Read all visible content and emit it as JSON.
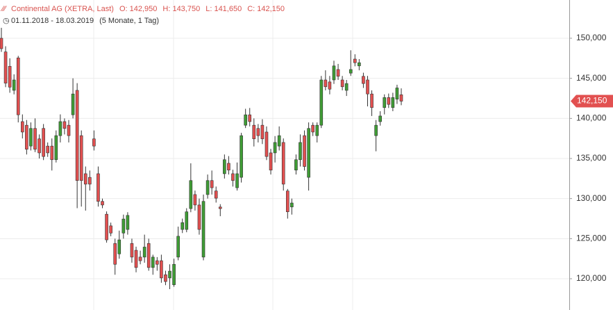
{
  "chart_data": {
    "type": "candlestick",
    "title": "Continental AG (XETRA, Last)",
    "ohlc_summary": [
      "O: 142,950",
      "H: 143,750",
      "L: 141,650",
      "C: 142,150"
    ],
    "period": "01.11.2018 - 18.03.2019",
    "period_note": "(5 Monate, 1 Tag)",
    "last_label": "142,150",
    "last_value": 142150,
    "up_color": "#3f9c35",
    "down_color": "#e25050",
    "grid": true,
    "ylim": [
      116100,
      154770
    ],
    "yticks": [
      {
        "value": 120000,
        "label": "120,000"
      },
      {
        "value": 125000,
        "label": "125,000"
      },
      {
        "value": 130000,
        "label": "130,000"
      },
      {
        "value": 135000,
        "label": "135,000"
      },
      {
        "value": 140000,
        "label": "140,000"
      },
      {
        "value": 145000,
        "label": "145,000"
      },
      {
        "value": 150000,
        "label": "150,000"
      }
    ],
    "open": [
      150000,
      148300,
      146500,
      143500,
      147550,
      139600,
      139150,
      136550,
      138750,
      137450,
      138750,
      136550,
      136550,
      134850,
      137850,
      139600,
      139150,
      140450,
      143500,
      137850,
      133100,
      132650,
      137450,
      133100,
      129650,
      128050,
      126600,
      124400,
      123100,
      125700,
      126150,
      124400,
      123550,
      122700,
      122700,
      124400,
      121400,
      122250,
      122250,
      120500,
      120100,
      119250,
      122700,
      126150,
      126150,
      128750,
      130500,
      129200,
      122700,
      130500,
      132250,
      130950,
      128950,
      133100,
      134400,
      133100,
      131350,
      132650,
      139150,
      140450,
      139150,
      138750,
      139150,
      138300,
      135700,
      135700,
      136550,
      137000,
      130950,
      128950,
      133550,
      134850,
      137850,
      132650,
      139150,
      137850,
      139150,
      144800,
      144550,
      144800,
      146100,
      144800,
      143500,
      145650,
      147400,
      146550,
      145250,
      144800,
      143050,
      137850,
      139600,
      141350,
      142600,
      141350,
      142400,
      142950
    ],
    "high": [
      151300,
      149000,
      147500,
      145500,
      147800,
      140500,
      139800,
      139500,
      140000,
      138000,
      139300,
      137000,
      137500,
      138500,
      140500,
      140000,
      139800,
      145000,
      144400,
      138500,
      134000,
      133500,
      138500,
      134000,
      130000,
      128400,
      127000,
      125000,
      126000,
      128000,
      128300,
      125000,
      124000,
      123500,
      125500,
      125000,
      123000,
      122700,
      123000,
      121000,
      121800,
      122500,
      126500,
      127500,
      128800,
      134400,
      131000,
      130000,
      130500,
      133000,
      133500,
      131500,
      129300,
      135500,
      135300,
      133600,
      134500,
      138200,
      141200,
      141300,
      140000,
      139300,
      139900,
      139000,
      136200,
      137800,
      139000,
      137500,
      131200,
      130000,
      135500,
      138000,
      138500,
      139500,
      139500,
      139500,
      145300,
      146000,
      145300,
      147200,
      146800,
      145300,
      144800,
      148500,
      148000,
      147400,
      145700,
      145300,
      143500,
      139800,
      140900,
      143000,
      143100,
      143200,
      144200,
      143750
    ],
    "low": [
      148300,
      143900,
      143200,
      143000,
      139500,
      137500,
      135500,
      136000,
      135800,
      135000,
      134800,
      135200,
      133500,
      134500,
      137000,
      138000,
      137000,
      140000,
      128800,
      129000,
      128500,
      131000,
      136000,
      129000,
      128800,
      124500,
      125300,
      120500,
      122500,
      125000,
      125500,
      122000,
      120800,
      121800,
      122000,
      121000,
      120500,
      121000,
      119500,
      119200,
      118700,
      119000,
      122300,
      125700,
      125800,
      128300,
      128500,
      125500,
      122300,
      130000,
      130500,
      129500,
      127800,
      132500,
      133000,
      131500,
      131000,
      132000,
      138800,
      139000,
      136500,
      137000,
      136800,
      134800,
      133000,
      134500,
      136000,
      131000,
      127500,
      128000,
      133000,
      134000,
      133500,
      131000,
      137800,
      137000,
      138800,
      143500,
      143000,
      144300,
      144800,
      143500,
      142800,
      145300,
      146500,
      146000,
      143800,
      141500,
      140300,
      135900,
      139100,
      140500,
      141300,
      140900,
      141800,
      141650
    ],
    "close": [
      148700,
      144400,
      143900,
      144800,
      140450,
      138300,
      136150,
      138750,
      136150,
      135700,
      135250,
      135700,
      134850,
      137850,
      139600,
      138750,
      137850,
      143050,
      132250,
      132250,
      131800,
      131800,
      136550,
      129650,
      129200,
      124850,
      125700,
      121800,
      124850,
      127450,
      127900,
      122700,
      121400,
      122250,
      123950,
      121400,
      122700,
      121800,
      120100,
      119650,
      120950,
      121800,
      125300,
      127000,
      128350,
      132250,
      129200,
      126150,
      129650,
      132250,
      131350,
      130050,
      128750,
      134850,
      133550,
      132250,
      133100,
      137850,
      140450,
      139600,
      137450,
      137850,
      137450,
      135250,
      133550,
      137000,
      137850,
      131800,
      128350,
      129450,
      134850,
      137000,
      134000,
      138750,
      138300,
      139150,
      144800,
      143950,
      143650,
      146550,
      145250,
      143950,
      144350,
      146100,
      146950,
      146950,
      144350,
      143050,
      141350,
      139150,
      140300,
      142600,
      141750,
      142600,
      143800,
      142150
    ]
  }
}
